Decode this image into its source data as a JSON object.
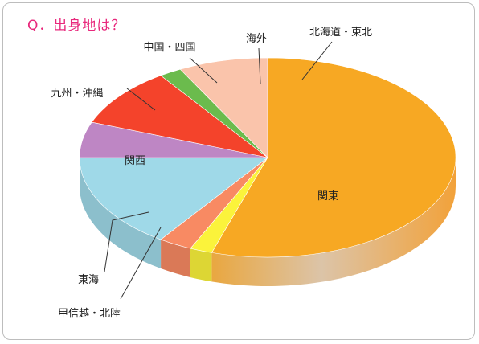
{
  "title": "Q．出身地は？",
  "chart_data": {
    "type": "pie",
    "style": "3d",
    "slices": [
      {
        "label": "関東",
        "value": 57,
        "color": "#F7A823"
      },
      {
        "label": "甲信越・北陸",
        "value": 2,
        "color": "#FBF33B"
      },
      {
        "label": "東海",
        "value": 3,
        "color": "#F88A63"
      },
      {
        "label": "関西",
        "value": 16,
        "color": "#9FD9E8"
      },
      {
        "label": "九州・沖縄",
        "value": 6,
        "color": "#BE86C4"
      },
      {
        "label": "中国・四国",
        "value": 10,
        "color": "#F4432B"
      },
      {
        "label": "海外",
        "value": 2,
        "color": "#6BBB4D"
      },
      {
        "label": "北海道・東北",
        "value": 8,
        "color": "#FAC4AB"
      }
    ]
  }
}
